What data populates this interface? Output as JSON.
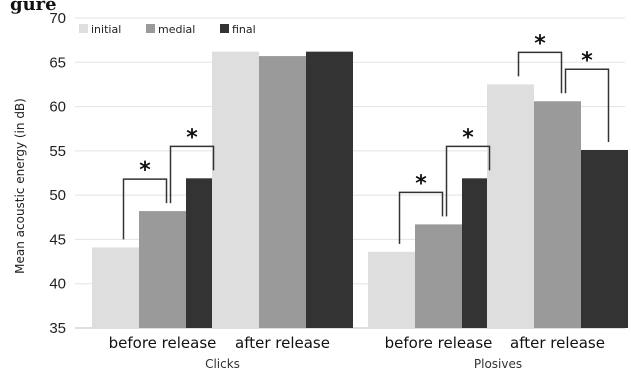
{
  "figure_caption_fragment": "gure ",
  "chart_data": {
    "type": "bar",
    "ylabel": "Mean acoustic energy (in dB)",
    "ylim": [
      35,
      70
    ],
    "yticks": [
      35,
      40,
      45,
      50,
      55,
      60,
      65,
      70
    ],
    "grid": true,
    "legend_placement": "top-left",
    "series": [
      {
        "name": "initial",
        "color": "#dedede"
      },
      {
        "name": "medial",
        "color": "#9a9a9a"
      },
      {
        "name": "final",
        "color": "#333333"
      }
    ],
    "groups": [
      {
        "name": "Clicks",
        "categories": [
          {
            "label": "before release",
            "values": [
              44.1,
              48.2,
              51.9
            ],
            "significance": [
              {
                "from": 0,
                "to": 1,
                "mark": "*"
              },
              {
                "from": 1,
                "to": 2,
                "mark": "*"
              }
            ]
          },
          {
            "label": "after release",
            "values": [
              66.2,
              65.7,
              66.2
            ],
            "significance": []
          }
        ]
      },
      {
        "name": "Plosives",
        "categories": [
          {
            "label": "before release",
            "values": [
              43.6,
              46.7,
              51.9
            ],
            "significance": [
              {
                "from": 0,
                "to": 1,
                "mark": "*"
              },
              {
                "from": 1,
                "to": 2,
                "mark": "*"
              }
            ]
          },
          {
            "label": "after release",
            "values": [
              62.5,
              60.6,
              55.1
            ],
            "significance": [
              {
                "from": 0,
                "to": 1,
                "mark": "*"
              },
              {
                "from": 1,
                "to": 2,
                "mark": "*"
              }
            ]
          }
        ]
      }
    ]
  }
}
